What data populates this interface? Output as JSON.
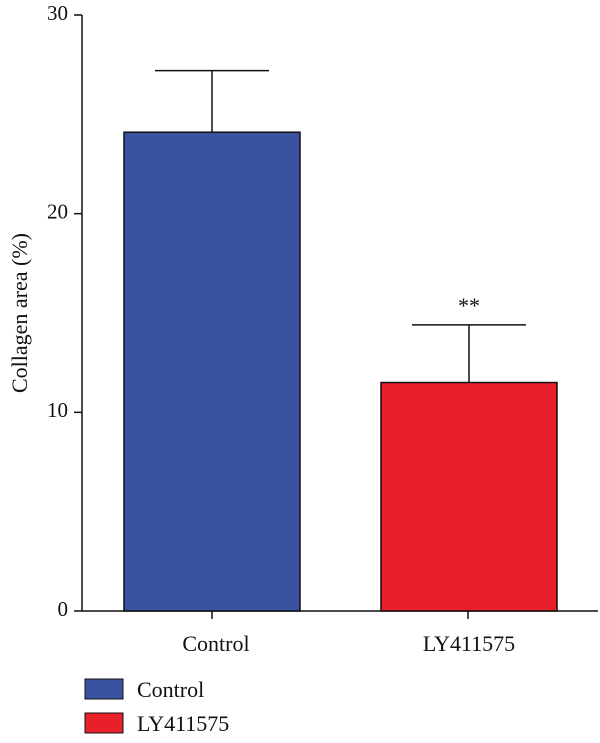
{
  "chart_data": {
    "type": "bar",
    "title": "",
    "xlabel": "",
    "ylabel": "Collagen area (%)",
    "ylim": [
      0,
      30
    ],
    "yticks": [
      0,
      10,
      20,
      30
    ],
    "categories": [
      "Control",
      "LY411575"
    ],
    "values": [
      24.1,
      11.5
    ],
    "error_upper": [
      27.2,
      14.4
    ],
    "annotations": [
      "",
      "**"
    ],
    "colors": [
      "#3a52a0",
      "#e8202a"
    ],
    "legend": {
      "position": "bottom-left",
      "entries": [
        "Control",
        "LY411575"
      ]
    },
    "grid": false
  }
}
